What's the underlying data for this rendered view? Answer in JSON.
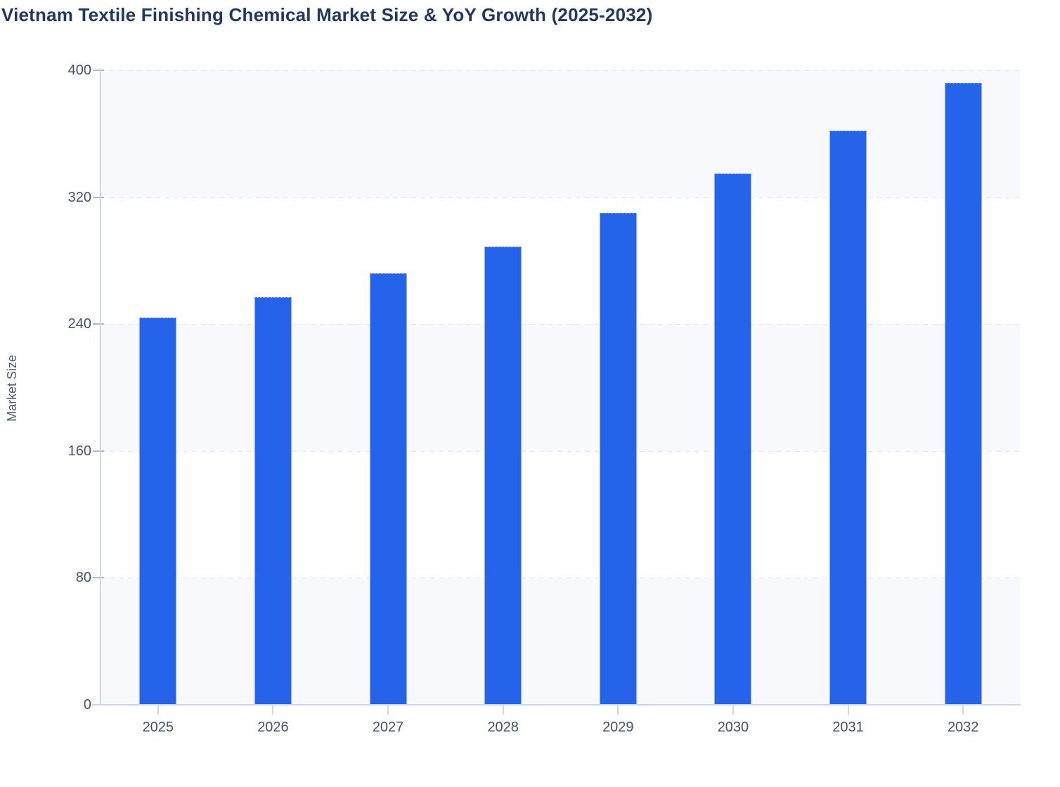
{
  "title": "Vietnam Textile Finishing Chemical Market Size & YoY Growth (2025-2032)",
  "y_axis_title": "Market Size",
  "chart_data": {
    "type": "bar",
    "title": "Vietnam Textile Finishing Chemical Market Size & YoY Growth (2025-2032)",
    "xlabel": "",
    "ylabel": "Market Size",
    "categories": [
      "2025",
      "2026",
      "2027",
      "2028",
      "2029",
      "2030",
      "2031",
      "2032"
    ],
    "series": [
      {
        "name": "Market Size",
        "values": [
          244,
          257,
          272,
          289,
          310,
          335,
          362,
          392
        ]
      }
    ],
    "ylim": [
      0,
      400
    ],
    "yticks": [
      0,
      80,
      160,
      240,
      320,
      400
    ],
    "grid": "horizontal-dashed",
    "alternating_bands": true,
    "legend_position": "none"
  },
  "colors": {
    "bar": "#2563eb",
    "bar_stroke": "#b9c9f4",
    "band": "#f8f9fc",
    "gridline": "#e2e4e9",
    "axis": "#ccd6f1",
    "y_tick_mark": "#aeb6c6",
    "tick_label": "#45526b",
    "title": "#22385c"
  }
}
